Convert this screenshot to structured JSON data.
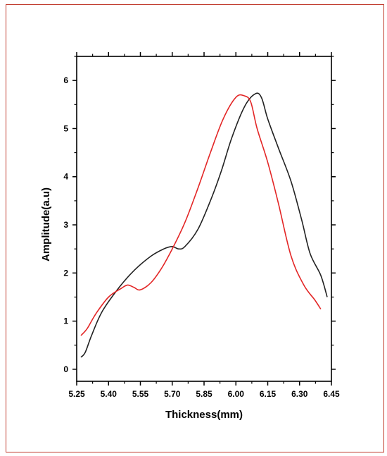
{
  "chart_data": {
    "type": "line",
    "title": "",
    "xlabel": "Thickness(mm)",
    "ylabel": "Amplitude(a.u)",
    "xlim": [
      5.25,
      6.45
    ],
    "ylim": [
      -0.25,
      6.5
    ],
    "xticks": [
      "5.25",
      "5.40",
      "5.55",
      "5.70",
      "5.85",
      "6.00",
      "6.15",
      "6.30",
      "6.45"
    ],
    "xtick_values": [
      5.25,
      5.4,
      5.55,
      5.7,
      5.85,
      6.0,
      6.15,
      6.3,
      6.45
    ],
    "yticks": [
      "0",
      "1",
      "2",
      "3",
      "4",
      "5",
      "6"
    ],
    "ytick_values": [
      0,
      1,
      2,
      3,
      4,
      5,
      6
    ],
    "grid": false,
    "legend": "none",
    "series": [
      {
        "color": "#222222",
        "x": [
          5.27,
          5.29,
          5.32,
          5.37,
          5.45,
          5.52,
          5.6,
          5.66,
          5.7,
          5.73,
          5.76,
          5.82,
          5.88,
          5.93,
          5.98,
          6.04,
          6.09,
          6.12,
          6.15,
          6.2,
          6.26,
          6.31,
          6.35,
          6.4,
          6.43
        ],
        "y": [
          0.25,
          0.35,
          0.7,
          1.2,
          1.7,
          2.05,
          2.35,
          2.5,
          2.55,
          2.5,
          2.55,
          2.9,
          3.5,
          4.1,
          4.8,
          5.45,
          5.72,
          5.65,
          5.2,
          4.6,
          3.9,
          3.1,
          2.4,
          1.95,
          1.5
        ]
      },
      {
        "color": "#e32626",
        "x": [
          5.27,
          5.3,
          5.34,
          5.4,
          5.46,
          5.49,
          5.52,
          5.55,
          5.6,
          5.65,
          5.7,
          5.76,
          5.82,
          5.88,
          5.94,
          6.0,
          6.04,
          6.07,
          6.1,
          6.15,
          6.2,
          6.26,
          6.32,
          6.37,
          6.4
        ],
        "y": [
          0.7,
          0.85,
          1.15,
          1.5,
          1.68,
          1.75,
          1.7,
          1.65,
          1.8,
          2.1,
          2.5,
          3.05,
          3.75,
          4.5,
          5.2,
          5.65,
          5.68,
          5.55,
          5.0,
          4.3,
          3.45,
          2.35,
          1.75,
          1.45,
          1.25
        ]
      }
    ]
  }
}
